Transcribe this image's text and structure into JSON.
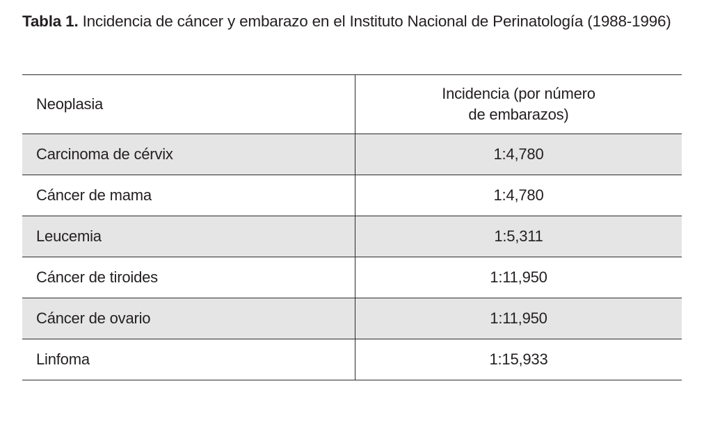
{
  "caption": {
    "label": "Tabla 1.",
    "text": " Incidencia de cáncer y embarazo en el Instituto Nacional de Perinatología (1988-1996)"
  },
  "table": {
    "header": {
      "neoplasia": "Neoplasia",
      "incidencia": "Incidencia (por número\nde embarazos)"
    },
    "rows": [
      {
        "neoplasia": "Carcinoma de cérvix",
        "incidencia": "1:4,780"
      },
      {
        "neoplasia": "Cáncer de mama",
        "incidencia": "1:4,780"
      },
      {
        "neoplasia": "Leucemia",
        "incidencia": "1:5,311"
      },
      {
        "neoplasia": "Cáncer de tiroides",
        "incidencia": "1:11,950"
      },
      {
        "neoplasia": "Cáncer de ovario",
        "incidencia": "1:11,950"
      },
      {
        "neoplasia": "Linfoma",
        "incidencia": "1:15,933"
      }
    ]
  },
  "colors": {
    "row_alt": "#e5e5e5",
    "border": "#2a2a2a",
    "text": "#231f20"
  },
  "chart_data": {
    "type": "table",
    "title": "Tabla 1. Incidencia de cáncer y embarazo en el Instituto Nacional de Perinatología (1988-1996)",
    "columns": [
      "Neoplasia",
      "Incidencia (por número de embarazos)"
    ],
    "rows": [
      [
        "Carcinoma de cérvix",
        "1:4,780"
      ],
      [
        "Cáncer de mama",
        "1:4,780"
      ],
      [
        "Leucemia",
        "1:5,311"
      ],
      [
        "Cáncer de tiroides",
        "1:11,950"
      ],
      [
        "Cáncer de ovario",
        "1:11,950"
      ],
      [
        "Linfoma",
        "1:15,933"
      ]
    ]
  }
}
